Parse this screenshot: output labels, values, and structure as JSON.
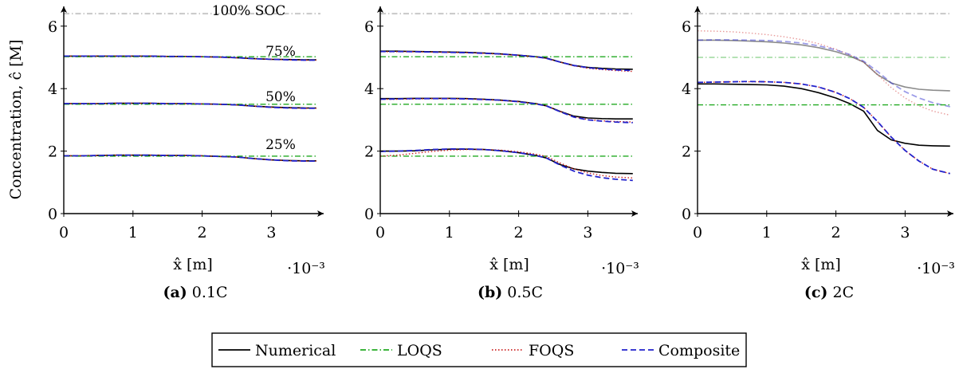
{
  "figure": {
    "ylabel": "Concentration, ĉ [M]",
    "xlabel": "x̂ [m]",
    "x_multiplier": "·10⁻³",
    "y_ticks": [
      0,
      2,
      4,
      6
    ],
    "x_ticks": [
      0,
      1,
      2,
      3
    ]
  },
  "legend": {
    "entries": [
      {
        "label": "Numerical",
        "color": "#000000",
        "dash": "solid"
      },
      {
        "label": "LOQS",
        "color": "#22aa22",
        "dash": "dashdot"
      },
      {
        "label": "FOQS",
        "color": "#cc2222",
        "dash": "dotted"
      },
      {
        "label": "Composite",
        "color": "#2222cc",
        "dash": "dashed"
      }
    ]
  },
  "chart_data": [
    {
      "type": "line",
      "panel_label": "(a)",
      "caption": "0.1C",
      "xlabel": "x̂ [m]",
      "ylabel": "Concentration, ĉ [M]",
      "xlim": [
        0,
        3.65
      ],
      "ylim": [
        0,
        6.8
      ],
      "x_scale_note": "·10⁻³",
      "annotations": [
        "100% SOC",
        "75%",
        "50%",
        "25%"
      ],
      "reference_line": {
        "label": "100% SOC",
        "y": 6.4
      },
      "x": [
        0,
        0.25,
        0.5,
        0.75,
        1.0,
        1.25,
        1.5,
        1.75,
        2.0,
        2.25,
        2.5,
        2.75,
        3.0,
        3.25,
        3.5,
        3.65
      ],
      "series": [
        {
          "name": "Numerical",
          "group": "75%",
          "values": [
            5.04,
            5.04,
            5.04,
            5.04,
            5.04,
            5.04,
            5.03,
            5.03,
            5.02,
            5.01,
            4.99,
            4.96,
            4.94,
            4.93,
            4.92,
            4.92
          ]
        },
        {
          "name": "LOQS",
          "group": "75%",
          "values": [
            5.02,
            5.02,
            5.02,
            5.02,
            5.02,
            5.02,
            5.02,
            5.02,
            5.02,
            5.02,
            5.02,
            5.02,
            5.02,
            5.02,
            5.02,
            5.02
          ]
        },
        {
          "name": "FOQS",
          "group": "75%",
          "values": [
            5.04,
            5.04,
            5.04,
            5.04,
            5.04,
            5.04,
            5.03,
            5.03,
            5.02,
            5.01,
            4.99,
            4.96,
            4.94,
            4.92,
            4.91,
            4.91
          ]
        },
        {
          "name": "Composite",
          "group": "75%",
          "values": [
            5.04,
            5.04,
            5.04,
            5.04,
            5.04,
            5.04,
            5.03,
            5.03,
            5.02,
            5.01,
            4.99,
            4.96,
            4.94,
            4.92,
            4.91,
            4.91
          ]
        },
        {
          "name": "Numerical",
          "group": "50%",
          "values": [
            3.52,
            3.52,
            3.52,
            3.53,
            3.53,
            3.53,
            3.52,
            3.52,
            3.51,
            3.5,
            3.48,
            3.44,
            3.41,
            3.39,
            3.38,
            3.38
          ]
        },
        {
          "name": "LOQS",
          "group": "50%",
          "values": [
            3.5,
            3.5,
            3.5,
            3.5,
            3.5,
            3.5,
            3.5,
            3.5,
            3.5,
            3.5,
            3.5,
            3.5,
            3.5,
            3.5,
            3.5,
            3.5
          ]
        },
        {
          "name": "FOQS",
          "group": "50%",
          "values": [
            3.52,
            3.52,
            3.52,
            3.53,
            3.53,
            3.53,
            3.52,
            3.52,
            3.51,
            3.5,
            3.48,
            3.44,
            3.4,
            3.38,
            3.37,
            3.37
          ]
        },
        {
          "name": "Composite",
          "group": "50%",
          "values": [
            3.52,
            3.52,
            3.52,
            3.53,
            3.53,
            3.53,
            3.52,
            3.52,
            3.51,
            3.5,
            3.48,
            3.44,
            3.4,
            3.38,
            3.37,
            3.37
          ]
        },
        {
          "name": "Numerical",
          "group": "25%",
          "values": [
            1.85,
            1.85,
            1.86,
            1.87,
            1.87,
            1.87,
            1.86,
            1.86,
            1.85,
            1.83,
            1.81,
            1.76,
            1.72,
            1.7,
            1.69,
            1.69
          ]
        },
        {
          "name": "LOQS",
          "group": "25%",
          "values": [
            1.84,
            1.84,
            1.84,
            1.84,
            1.84,
            1.84,
            1.84,
            1.84,
            1.84,
            1.84,
            1.84,
            1.84,
            1.84,
            1.84,
            1.84,
            1.84
          ]
        },
        {
          "name": "FOQS",
          "group": "25%",
          "values": [
            1.85,
            1.85,
            1.86,
            1.87,
            1.87,
            1.87,
            1.86,
            1.86,
            1.85,
            1.83,
            1.81,
            1.76,
            1.72,
            1.69,
            1.68,
            1.68
          ]
        },
        {
          "name": "Composite",
          "group": "25%",
          "values": [
            1.85,
            1.85,
            1.86,
            1.87,
            1.87,
            1.87,
            1.86,
            1.86,
            1.85,
            1.83,
            1.81,
            1.76,
            1.72,
            1.69,
            1.68,
            1.68
          ]
        }
      ]
    },
    {
      "type": "line",
      "panel_label": "(b)",
      "caption": "0.5C",
      "xlabel": "x̂ [m]",
      "xlim": [
        0,
        3.65
      ],
      "ylim": [
        0,
        6.8
      ],
      "x_scale_note": "·10⁻³",
      "reference_line": {
        "y": 6.4
      },
      "x": [
        0,
        0.25,
        0.5,
        0.75,
        1.0,
        1.25,
        1.5,
        1.75,
        2.0,
        2.25,
        2.4,
        2.6,
        2.8,
        3.0,
        3.2,
        3.4,
        3.65
      ],
      "series": [
        {
          "name": "Numerical",
          "group": "75%",
          "values": [
            5.2,
            5.2,
            5.19,
            5.18,
            5.17,
            5.16,
            5.14,
            5.11,
            5.07,
            5.02,
            4.98,
            4.85,
            4.74,
            4.68,
            4.65,
            4.63,
            4.62
          ]
        },
        {
          "name": "LOQS",
          "group": "75%",
          "values": [
            5.02,
            5.02,
            5.02,
            5.02,
            5.02,
            5.02,
            5.02,
            5.02,
            5.02,
            5.02,
            5.02,
            5.02,
            5.02,
            5.02,
            5.02,
            5.02,
            5.02
          ]
        },
        {
          "name": "FOQS",
          "group": "75%",
          "values": [
            5.18,
            5.18,
            5.18,
            5.17,
            5.16,
            5.15,
            5.13,
            5.1,
            5.06,
            5.01,
            4.97,
            4.85,
            4.73,
            4.65,
            4.61,
            4.58,
            4.55
          ]
        },
        {
          "name": "Composite",
          "group": "75%",
          "values": [
            5.19,
            5.19,
            5.18,
            5.17,
            5.16,
            5.15,
            5.13,
            5.11,
            5.07,
            5.02,
            4.97,
            4.85,
            4.74,
            4.67,
            4.63,
            4.6,
            4.58
          ]
        },
        {
          "name": "Numerical",
          "group": "50%",
          "values": [
            3.68,
            3.68,
            3.69,
            3.69,
            3.69,
            3.68,
            3.66,
            3.63,
            3.59,
            3.52,
            3.45,
            3.27,
            3.12,
            3.06,
            3.04,
            3.03,
            3.03
          ]
        },
        {
          "name": "LOQS",
          "group": "50%",
          "values": [
            3.5,
            3.5,
            3.5,
            3.5,
            3.5,
            3.5,
            3.5,
            3.5,
            3.5,
            3.5,
            3.5,
            3.5,
            3.5,
            3.5,
            3.5,
            3.5,
            3.5
          ]
        },
        {
          "name": "FOQS",
          "group": "50%",
          "values": [
            3.66,
            3.66,
            3.67,
            3.68,
            3.68,
            3.67,
            3.65,
            3.62,
            3.58,
            3.51,
            3.45,
            3.27,
            3.1,
            3.01,
            2.97,
            2.95,
            2.93
          ]
        },
        {
          "name": "Composite",
          "group": "50%",
          "values": [
            3.66,
            3.67,
            3.68,
            3.68,
            3.68,
            3.67,
            3.65,
            3.63,
            3.58,
            3.51,
            3.45,
            3.26,
            3.09,
            3.0,
            2.96,
            2.93,
            2.91
          ]
        },
        {
          "name": "Numerical",
          "group": "25%",
          "values": [
            2.0,
            2.0,
            2.01,
            2.04,
            2.06,
            2.06,
            2.05,
            2.01,
            1.95,
            1.86,
            1.78,
            1.57,
            1.43,
            1.36,
            1.32,
            1.29,
            1.28
          ]
        },
        {
          "name": "LOQS",
          "group": "25%",
          "values": [
            1.84,
            1.84,
            1.84,
            1.84,
            1.84,
            1.84,
            1.84,
            1.84,
            1.84,
            1.84,
            1.84,
            1.84,
            1.84,
            1.84,
            1.84,
            1.84,
            1.84
          ]
        },
        {
          "name": "FOQS",
          "group": "25%",
          "values": [
            1.84,
            1.87,
            1.93,
            1.99,
            2.03,
            2.05,
            2.05,
            2.03,
            1.98,
            1.9,
            1.83,
            1.62,
            1.43,
            1.3,
            1.22,
            1.17,
            1.14
          ]
        },
        {
          "name": "Composite",
          "group": "25%",
          "values": [
            1.99,
            2.0,
            2.02,
            2.05,
            2.07,
            2.07,
            2.05,
            2.01,
            1.95,
            1.86,
            1.78,
            1.55,
            1.36,
            1.23,
            1.15,
            1.1,
            1.06
          ]
        }
      ]
    },
    {
      "type": "line",
      "panel_label": "(c)",
      "caption": "2C",
      "xlabel": "x̂ [m]",
      "xlim": [
        0,
        3.65
      ],
      "ylim": [
        0,
        6.8
      ],
      "x_scale_note": "·10⁻³",
      "reference_line": {
        "y": 6.4
      },
      "x": [
        0,
        0.25,
        0.5,
        0.75,
        1.0,
        1.25,
        1.5,
        1.75,
        2.0,
        2.2,
        2.4,
        2.6,
        2.8,
        3.0,
        3.2,
        3.4,
        3.65
      ],
      "series": [
        {
          "name": "Numerical",
          "group": "75%",
          "values": [
            5.55,
            5.55,
            5.54,
            5.52,
            5.5,
            5.46,
            5.4,
            5.31,
            5.18,
            5.04,
            4.85,
            4.45,
            4.18,
            4.05,
            3.98,
            3.95,
            3.93
          ]
        },
        {
          "name": "LOQS",
          "group": "75%",
          "values": [
            5.0,
            5.0,
            5.0,
            5.0,
            5.0,
            5.0,
            5.0,
            5.0,
            5.0,
            5.0,
            5.0,
            5.0,
            5.0,
            5.0,
            5.0,
            5.0,
            5.0
          ]
        },
        {
          "name": "FOQS",
          "group": "75%",
          "values": [
            5.85,
            5.84,
            5.82,
            5.78,
            5.73,
            5.66,
            5.57,
            5.44,
            5.26,
            5.08,
            4.85,
            4.45,
            4.03,
            3.7,
            3.45,
            3.28,
            3.15
          ]
        },
        {
          "name": "Composite",
          "group": "75%",
          "values": [
            5.55,
            5.56,
            5.56,
            5.55,
            5.54,
            5.51,
            5.46,
            5.37,
            5.24,
            5.09,
            4.88,
            4.55,
            4.18,
            3.9,
            3.7,
            3.55,
            3.42
          ]
        },
        {
          "name": "Numerical",
          "group": "50%",
          "values": [
            4.15,
            4.15,
            4.14,
            4.13,
            4.12,
            4.08,
            4.0,
            3.87,
            3.7,
            3.52,
            3.28,
            2.66,
            2.36,
            2.25,
            2.19,
            2.17,
            2.16
          ]
        },
        {
          "name": "LOQS",
          "group": "50%",
          "values": [
            3.48,
            3.48,
            3.48,
            3.48,
            3.48,
            3.48,
            3.48,
            3.48,
            3.48,
            3.48,
            3.48,
            3.48,
            3.48,
            3.48,
            3.48,
            3.48,
            3.48
          ]
        },
        {
          "name": "FOQS",
          "group": "50%",
          "values": [
            4.2,
            4.21,
            4.22,
            4.22,
            4.22,
            4.2,
            4.15,
            4.05,
            3.88,
            3.68,
            3.4,
            2.95,
            2.45,
            2.02,
            1.68,
            1.42,
            1.28
          ]
        },
        {
          "name": "Composite",
          "group": "50%",
          "values": [
            4.2,
            4.21,
            4.22,
            4.23,
            4.22,
            4.2,
            4.15,
            4.05,
            3.88,
            3.68,
            3.4,
            2.95,
            2.45,
            2.02,
            1.68,
            1.42,
            1.28
          ]
        }
      ]
    }
  ]
}
